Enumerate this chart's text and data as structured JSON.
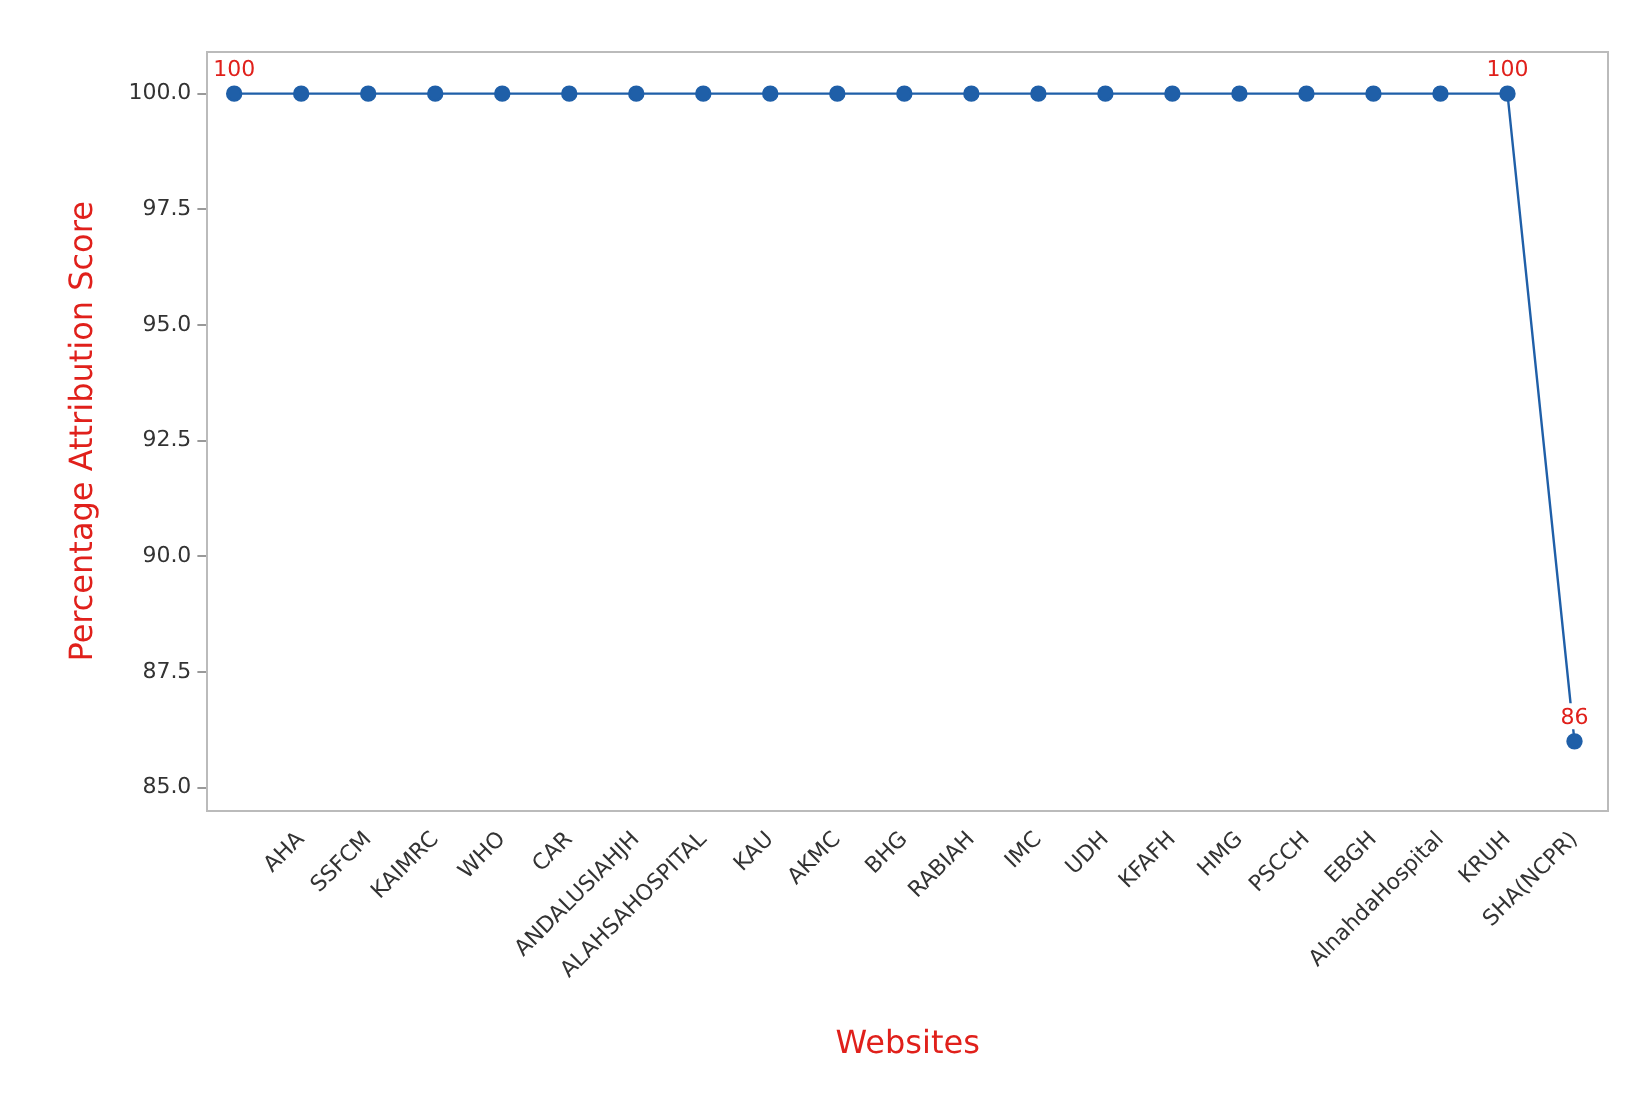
{
  "chart_data": {
    "type": "line",
    "xlabel": "Websites",
    "ylabel": "Percentage Attribution Score",
    "categories": [
      null,
      "AHA",
      "SSFCM",
      "KAIMRC",
      "WHO",
      "CAR",
      "ANDALUSIAHJH",
      "ALAHSAHOSPITAL",
      "KAU",
      "AKMC",
      "BHG",
      "RABIAH",
      "IMC",
      "UDH",
      "KFAFH",
      "HMG",
      "PSCCH",
      "EBGH",
      "AlnahdaHospital",
      "KRUH",
      "SHA(NCPR)"
    ],
    "series": [
      {
        "color": "#1f5fa8",
        "values": [
          100,
          100,
          100,
          100,
          100,
          100,
          100,
          100,
          100,
          100,
          100,
          100,
          100,
          100,
          100,
          100,
          100,
          100,
          100,
          100,
          86
        ],
        "value_labels": [
          "100",
          null,
          null,
          null,
          null,
          null,
          null,
          null,
          null,
          null,
          null,
          null,
          null,
          null,
          null,
          null,
          null,
          null,
          null,
          "100",
          "86"
        ]
      }
    ],
    "ylim": [
      84.5,
      100.9
    ],
    "yticks": [
      {
        "value": 85,
        "label": "85.0"
      },
      {
        "value": 87.5,
        "label": "87.5"
      },
      {
        "value": 90,
        "label": "90.0"
      },
      {
        "value": 92.5,
        "label": "92.5"
      },
      {
        "value": 95,
        "label": "95.0"
      },
      {
        "value": 97.5,
        "label": "97.5"
      },
      {
        "value": 100,
        "label": "100.0"
      }
    ],
    "grid": false,
    "legend": false,
    "marker": "circle",
    "line_style": "solid"
  }
}
